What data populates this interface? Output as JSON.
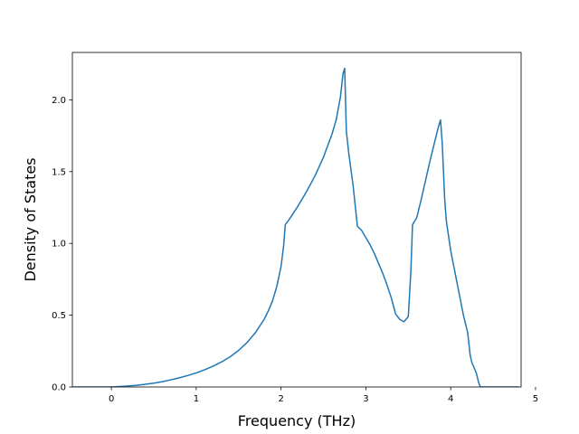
{
  "chart_data": {
    "type": "line",
    "title": "",
    "xlabel": "Frequency (THz)",
    "ylabel": "Density of States",
    "xlim": [
      -0.46,
      4.83
    ],
    "ylim": [
      0.0,
      2.33
    ],
    "xticks": [
      0,
      1,
      2,
      3,
      4,
      5
    ],
    "xtick_labels": [
      "0",
      "1",
      "2",
      "3",
      "4",
      "5"
    ],
    "yticks": [
      0.0,
      0.5,
      1.0,
      1.5,
      2.0
    ],
    "ytick_labels": [
      "0.0",
      "0.5",
      "1.0",
      "1.5",
      "2.0"
    ],
    "grid": false,
    "legend": false,
    "color": "#1f77b4",
    "series": [
      {
        "x": [
          -0.45,
          -0.3,
          -0.1,
          0.0,
          0.1,
          0.2,
          0.3,
          0.4,
          0.5,
          0.6,
          0.7,
          0.8,
          0.9,
          1.0,
          1.1,
          1.2,
          1.3,
          1.4,
          1.5,
          1.6,
          1.7,
          1.8,
          1.85,
          1.9,
          1.95,
          2.0,
          2.03,
          2.05,
          2.1,
          2.2,
          2.3,
          2.4,
          2.5,
          2.6,
          2.65,
          2.7,
          2.73,
          2.75,
          2.77,
          2.8,
          2.85,
          2.9,
          2.95,
          3.0,
          3.05,
          3.1,
          3.15,
          3.2,
          3.25,
          3.3,
          3.35,
          3.4,
          3.45,
          3.5,
          3.53,
          3.55,
          3.6,
          3.65,
          3.7,
          3.75,
          3.8,
          3.85,
          3.88,
          3.9,
          3.93,
          3.95,
          4.0,
          4.05,
          4.1,
          4.15,
          4.2,
          4.23,
          4.25,
          4.3,
          4.33,
          4.35,
          4.4,
          4.6,
          4.8
        ],
        "y": [
          0.0,
          0.0,
          0.0,
          0.0,
          0.003,
          0.007,
          0.012,
          0.019,
          0.027,
          0.037,
          0.05,
          0.064,
          0.08,
          0.098,
          0.12,
          0.145,
          0.175,
          0.21,
          0.255,
          0.31,
          0.38,
          0.47,
          0.53,
          0.6,
          0.7,
          0.84,
          0.98,
          1.13,
          1.17,
          1.26,
          1.36,
          1.47,
          1.6,
          1.76,
          1.86,
          2.02,
          2.18,
          2.22,
          1.78,
          1.62,
          1.4,
          1.12,
          1.09,
          1.04,
          0.99,
          0.93,
          0.86,
          0.79,
          0.71,
          0.62,
          0.51,
          0.47,
          0.455,
          0.49,
          0.8,
          1.13,
          1.18,
          1.3,
          1.43,
          1.56,
          1.68,
          1.8,
          1.86,
          1.7,
          1.3,
          1.15,
          0.95,
          0.8,
          0.65,
          0.5,
          0.38,
          0.22,
          0.17,
          0.1,
          0.03,
          0.0,
          0.0,
          0.0,
          0.0
        ]
      }
    ]
  }
}
